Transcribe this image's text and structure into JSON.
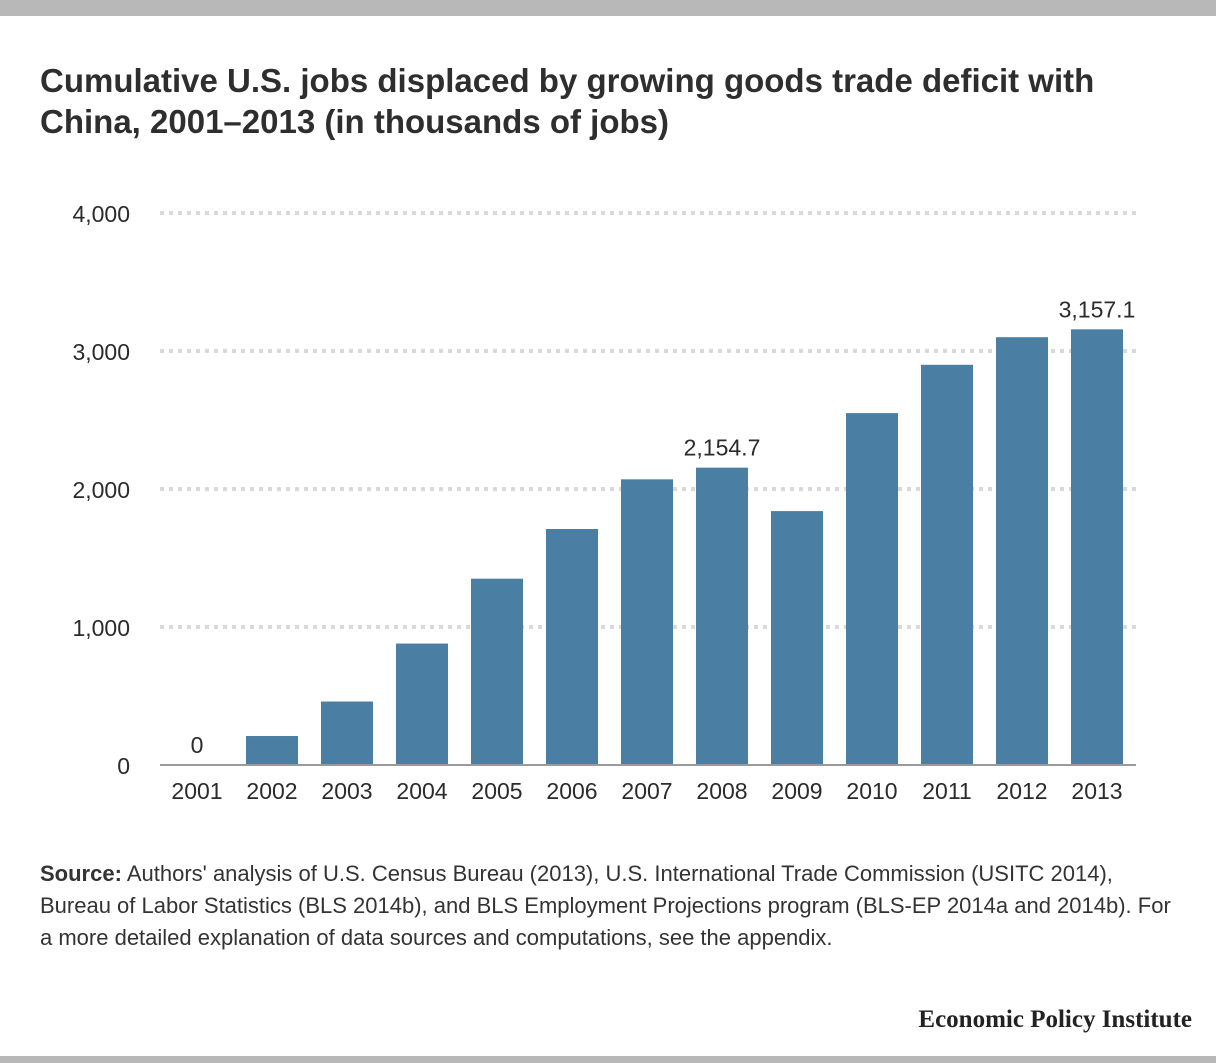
{
  "chart_data": {
    "type": "bar",
    "title": "Cumulative U.S. jobs displaced by growing goods trade deficit with China, 2001–2013 (in thousands of jobs)",
    "categories": [
      "2001",
      "2002",
      "2003",
      "2004",
      "2005",
      "2006",
      "2007",
      "2008",
      "2009",
      "2010",
      "2011",
      "2012",
      "2013"
    ],
    "values": [
      0,
      210,
      460,
      880,
      1350,
      1710,
      2070,
      2154.7,
      1840,
      2550,
      2900,
      3100,
      3157.1
    ],
    "data_labels": [
      {
        "index": 0,
        "text": "0"
      },
      {
        "index": 7,
        "text": "2,154.7"
      },
      {
        "index": 12,
        "text": "3,157.1"
      }
    ],
    "ylim": [
      0,
      4000
    ],
    "yticks": [
      0,
      1000,
      2000,
      3000,
      4000
    ],
    "ytick_labels": [
      "0",
      "1,000",
      "2,000",
      "3,000",
      "4,000"
    ],
    "grid": true,
    "bar_color": "#4a7fa3"
  },
  "source": {
    "label": "Source:",
    "text": " Authors' analysis of U.S. Census Bureau (2013), U.S. International Trade Commission (USITC 2014), Bureau of Labor Statistics (BLS 2014b), and BLS Employment Projections program (BLS-EP 2014a and 2014b).  For a more detailed explanation of data sources and computations, see the appendix."
  },
  "brand": "Economic Policy Institute"
}
